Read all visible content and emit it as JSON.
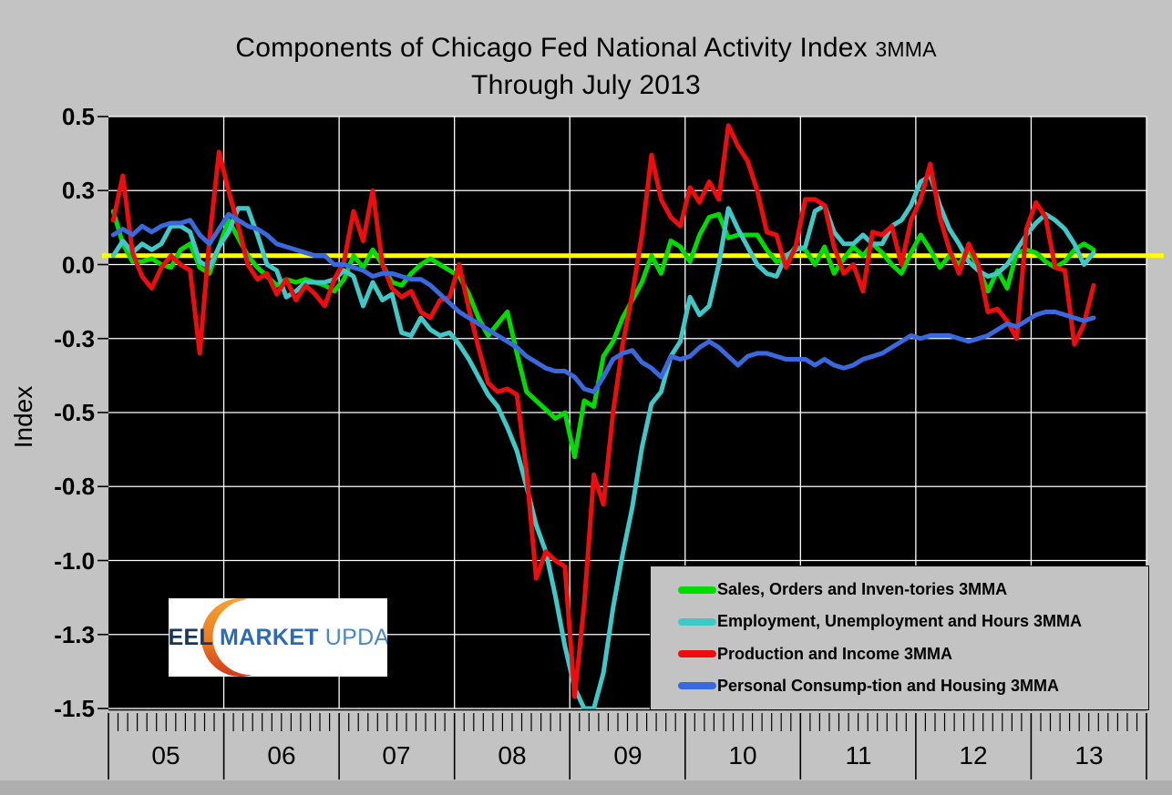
{
  "title": {
    "main": "Components of Chicago Fed National Activity Index",
    "suffix": "3MMA",
    "line2": "Through July 2013"
  },
  "y_axis": {
    "title": "Index",
    "tick_labels": [
      "0.5",
      "0.3",
      "0.0",
      "-0.3",
      "-0.5",
      "-0.8",
      "-1.0",
      "-1.3",
      "-1.5"
    ],
    "tick_values": [
      0.5,
      0.25,
      0.0,
      -0.25,
      -0.5,
      -0.75,
      -1.0,
      -1.25,
      -1.5
    ]
  },
  "x_axis": {
    "year_labels": [
      "05",
      "06",
      "07",
      "08",
      "09",
      "10",
      "11",
      "12",
      "13"
    ]
  },
  "logo": {
    "word1": "STEEL",
    "word2": "MARKET",
    "word3": "UPDATE"
  },
  "colors": {
    "background": "#c3c3c3",
    "plot_background": "#000000",
    "gridline": "#ffffff",
    "reference_line": "#ffff00",
    "tick": "#000000"
  },
  "chart_data": {
    "type": "line",
    "title": "Components of Chicago Fed National Activity Index 3MMA",
    "subtitle": "Through July 2013",
    "ylabel": "Index",
    "ylim": [
      -1.5,
      0.5
    ],
    "grid": true,
    "legend_position": "bottom-right-inside",
    "x_unit": "month",
    "x_start": "2005-01",
    "x_end": "2013-07",
    "x_axis_years": [
      "05",
      "06",
      "07",
      "08",
      "09",
      "10",
      "11",
      "12",
      "13"
    ],
    "y_tick_values": [
      0.5,
      0.25,
      0.0,
      -0.25,
      -0.5,
      -0.75,
      -1.0,
      -1.25,
      -1.5
    ],
    "y_tick_labels": [
      "0.5",
      "0.3",
      "0.0",
      "-0.3",
      "-0.5",
      "-0.8",
      "-1.0",
      "-1.3",
      "-1.5"
    ],
    "reference_line": {
      "value": 0.03,
      "color": "#ffff00"
    },
    "series": [
      {
        "name": "Sales, Orders and Inven-tories 3MMA",
        "color": "#00dc00",
        "values": [
          0.18,
          0.07,
          0.01,
          0.01,
          0.02,
          0.0,
          -0.01,
          0.05,
          0.07,
          -0.01,
          -0.03,
          0.06,
          0.15,
          0.09,
          0.03,
          -0.01,
          -0.04,
          -0.07,
          -0.05,
          -0.06,
          -0.05,
          -0.06,
          -0.07,
          -0.09,
          -0.05,
          0.03,
          -0.01,
          0.05,
          0.0,
          -0.06,
          -0.07,
          -0.03,
          0.0,
          0.02,
          0.0,
          -0.02,
          -0.04,
          -0.1,
          -0.18,
          -0.24,
          -0.2,
          -0.16,
          -0.3,
          -0.43,
          -0.46,
          -0.49,
          -0.52,
          -0.5,
          -0.65,
          -0.46,
          -0.48,
          -0.31,
          -0.26,
          -0.18,
          -0.12,
          -0.06,
          0.03,
          -0.03,
          0.08,
          0.06,
          0.01,
          0.1,
          0.16,
          0.17,
          0.09,
          0.1,
          0.1,
          0.1,
          0.05,
          0.01,
          0.02,
          0.06,
          0.05,
          0.0,
          0.06,
          -0.03,
          0.02,
          0.06,
          0.03,
          0.07,
          0.04,
          0.0,
          -0.03,
          0.04,
          0.1,
          0.05,
          -0.01,
          0.03,
          0.0,
          0.05,
          -0.01,
          -0.09,
          -0.02,
          -0.08,
          0.04,
          0.05,
          0.04,
          0.01,
          -0.01,
          0.01,
          0.05,
          0.07,
          0.05
        ]
      },
      {
        "name": "Employment, Unemployment and Hours 3MMA",
        "color": "#3fc8c8",
        "values": [
          0.03,
          0.08,
          0.04,
          0.07,
          0.05,
          0.07,
          0.13,
          0.13,
          0.11,
          0.01,
          -0.01,
          0.06,
          0.11,
          0.19,
          0.19,
          0.1,
          0.0,
          -0.02,
          -0.11,
          -0.09,
          -0.06,
          -0.06,
          -0.06,
          -0.05,
          -0.02,
          -0.04,
          -0.14,
          -0.06,
          -0.12,
          -0.1,
          -0.23,
          -0.24,
          -0.18,
          -0.22,
          -0.24,
          -0.23,
          -0.27,
          -0.32,
          -0.38,
          -0.44,
          -0.48,
          -0.55,
          -0.63,
          -0.75,
          -0.88,
          -0.97,
          -1.12,
          -1.29,
          -1.43,
          -1.5,
          -1.5,
          -1.38,
          -1.16,
          -0.98,
          -0.82,
          -0.62,
          -0.47,
          -0.43,
          -0.31,
          -0.26,
          -0.11,
          -0.17,
          -0.14,
          0.0,
          0.19,
          0.12,
          0.06,
          0.0,
          -0.03,
          -0.04,
          0.03,
          0.05,
          0.06,
          0.18,
          0.2,
          0.11,
          0.07,
          0.07,
          0.1,
          0.07,
          0.07,
          0.13,
          0.15,
          0.2,
          0.28,
          0.3,
          0.2,
          0.12,
          0.07,
          0.01,
          -0.02,
          -0.04,
          -0.03,
          0.0,
          0.05,
          0.1,
          0.14,
          0.17,
          0.15,
          0.12,
          0.07,
          0.0,
          0.04
        ]
      },
      {
        "name": "Production and Income 3MMA",
        "color": "#ee0c0c",
        "values": [
          0.15,
          0.3,
          0.04,
          -0.04,
          -0.08,
          -0.01,
          0.03,
          0.0,
          -0.02,
          -0.3,
          0.08,
          0.38,
          0.25,
          0.13,
          0.0,
          -0.05,
          -0.03,
          -0.1,
          -0.05,
          -0.12,
          -0.07,
          -0.1,
          -0.14,
          -0.05,
          0.01,
          0.18,
          0.08,
          0.25,
          0.0,
          -0.08,
          -0.11,
          -0.09,
          -0.16,
          -0.18,
          -0.12,
          -0.11,
          0.0,
          -0.15,
          -0.28,
          -0.4,
          -0.43,
          -0.42,
          -0.44,
          -0.7,
          -1.06,
          -0.97,
          -1.0,
          -1.02,
          -1.46,
          -1.15,
          -0.71,
          -0.81,
          -0.5,
          -0.27,
          -0.1,
          0.1,
          0.37,
          0.22,
          0.16,
          0.13,
          0.26,
          0.21,
          0.28,
          0.22,
          0.47,
          0.4,
          0.35,
          0.25,
          0.11,
          0.1,
          -0.01,
          0.06,
          0.22,
          0.22,
          0.2,
          0.06,
          -0.03,
          0.0,
          -0.09,
          0.11,
          0.1,
          0.13,
          0.0,
          0.15,
          0.22,
          0.34,
          0.16,
          0.05,
          -0.03,
          0.07,
          0.0,
          -0.16,
          -0.15,
          -0.19,
          -0.25,
          0.12,
          0.21,
          0.16,
          -0.01,
          -0.02,
          -0.27,
          -0.2,
          -0.07
        ]
      },
      {
        "name": "Personal Consump-tion and Housing 3MMA",
        "color": "#3a68dd",
        "values": [
          0.1,
          0.12,
          0.1,
          0.13,
          0.11,
          0.13,
          0.14,
          0.14,
          0.15,
          0.1,
          0.07,
          0.12,
          0.17,
          0.15,
          0.13,
          0.12,
          0.1,
          0.07,
          0.06,
          0.05,
          0.04,
          0.03,
          0.03,
          0.0,
          0.0,
          -0.01,
          -0.02,
          -0.04,
          -0.03,
          -0.03,
          -0.04,
          -0.05,
          -0.05,
          -0.07,
          -0.1,
          -0.13,
          -0.16,
          -0.18,
          -0.2,
          -0.22,
          -0.24,
          -0.26,
          -0.28,
          -0.31,
          -0.33,
          -0.35,
          -0.36,
          -0.36,
          -0.38,
          -0.42,
          -0.43,
          -0.38,
          -0.32,
          -0.3,
          -0.29,
          -0.33,
          -0.35,
          -0.38,
          -0.31,
          -0.32,
          -0.31,
          -0.28,
          -0.26,
          -0.28,
          -0.31,
          -0.34,
          -0.31,
          -0.3,
          -0.3,
          -0.31,
          -0.32,
          -0.32,
          -0.32,
          -0.34,
          -0.32,
          -0.34,
          -0.35,
          -0.34,
          -0.32,
          -0.31,
          -0.3,
          -0.28,
          -0.26,
          -0.24,
          -0.25,
          -0.24,
          -0.24,
          -0.24,
          -0.25,
          -0.26,
          -0.25,
          -0.24,
          -0.22,
          -0.2,
          -0.21,
          -0.19,
          -0.17,
          -0.16,
          -0.16,
          -0.17,
          -0.18,
          -0.19,
          -0.18
        ]
      }
    ]
  }
}
